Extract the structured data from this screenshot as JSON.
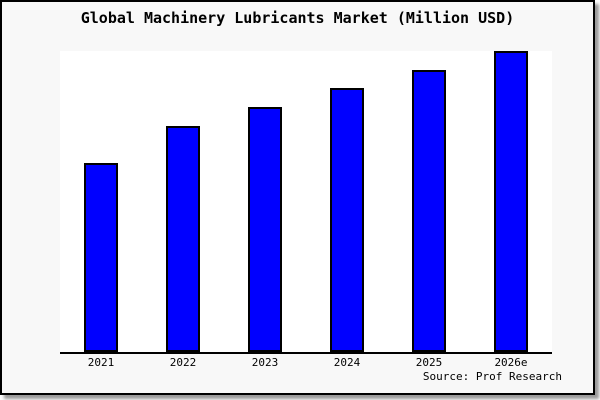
{
  "source_note": "Source: Prof Research",
  "colors": {
    "bar_fill": "#0000ff",
    "bar_border": "#000000",
    "axis": "#000000",
    "frame_background": "#f8f8f8",
    "plot_background": "#ffffff",
    "text": "#000000"
  },
  "chart_data": {
    "type": "bar",
    "title": "Global Machinery Lubricants Market (Million USD)",
    "categories": [
      "2021",
      "2022",
      "2023",
      "2024",
      "2025",
      "2026e"
    ],
    "values": [
      189,
      226,
      245,
      264,
      282,
      301
    ],
    "values_unit": "relative height (no y-axis scale shown in chart)",
    "xlabel": "",
    "ylabel": "",
    "grid": false,
    "legend": false,
    "bar_color": "#0000ff"
  }
}
